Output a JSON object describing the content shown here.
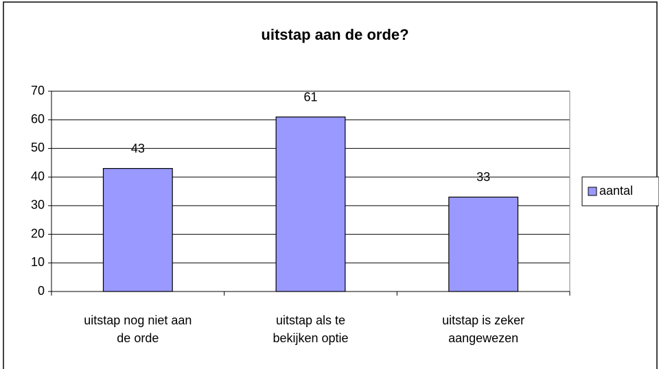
{
  "chart_data": {
    "type": "bar",
    "title": "uitstap aan de orde?",
    "categories": [
      "uitstap nog niet aan de orde",
      "uitstap als te bekijken optie",
      "uitstap is zeker aangewezen"
    ],
    "series": [
      {
        "name": "aantal",
        "color": "#9999ff",
        "values": [
          43,
          61,
          33
        ]
      }
    ],
    "ylim": [
      0,
      70
    ],
    "yticks": [
      0,
      10,
      20,
      30,
      40,
      50,
      60,
      70
    ],
    "grid": true,
    "legend": "right"
  }
}
